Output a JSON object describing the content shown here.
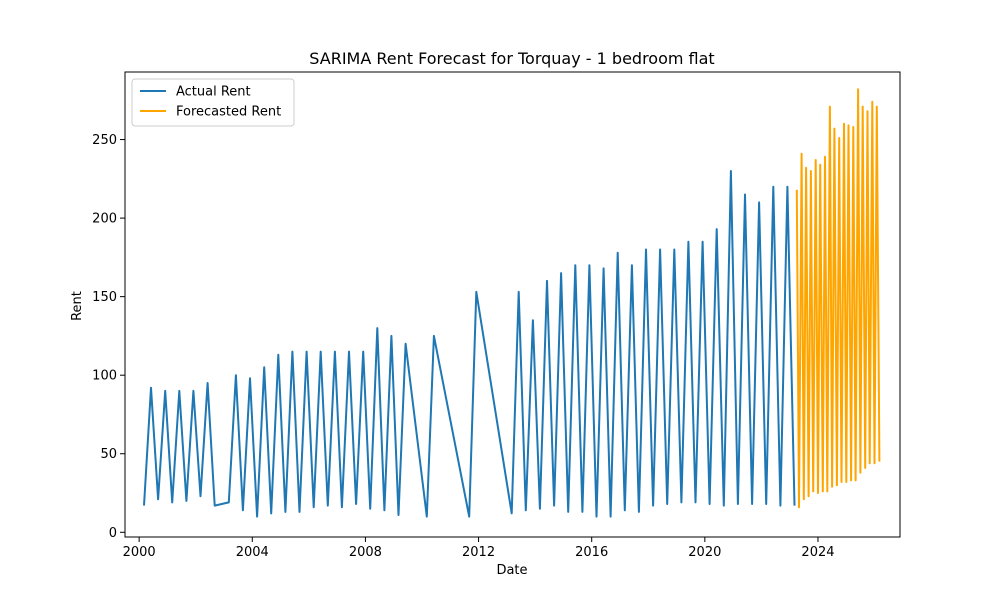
{
  "chart_data": {
    "type": "line",
    "title": "SARIMA Rent Forecast for Torquay - 1 bedroom flat",
    "xlabel": "Date",
    "ylabel": "Rent",
    "xlim": [
      1999.5,
      2026.9
    ],
    "ylim": [
      -3,
      293
    ],
    "x_ticks": [
      2000,
      2004,
      2008,
      2012,
      2016,
      2020,
      2024
    ],
    "x_tick_labels": [
      "2000",
      "2004",
      "2008",
      "2012",
      "2016",
      "2020",
      "2024"
    ],
    "y_ticks": [
      0,
      50,
      100,
      150,
      200,
      250
    ],
    "y_tick_labels": [
      "0",
      "50",
      "100",
      "150",
      "200",
      "250"
    ],
    "grid": false,
    "legend_position": "upper-left",
    "series": [
      {
        "name": "Actual Rent",
        "color": "#1f77b4",
        "points": [
          [
            2000.17,
            17
          ],
          [
            2000.42,
            92
          ],
          [
            2000.67,
            21
          ],
          [
            2000.92,
            90
          ],
          [
            2001.17,
            19
          ],
          [
            2001.42,
            90
          ],
          [
            2001.67,
            20
          ],
          [
            2001.92,
            90
          ],
          [
            2002.17,
            23
          ],
          [
            2002.42,
            95
          ],
          [
            2002.67,
            17
          ],
          [
            2003.17,
            19
          ],
          [
            2003.42,
            100
          ],
          [
            2003.67,
            14
          ],
          [
            2003.92,
            98
          ],
          [
            2004.17,
            10
          ],
          [
            2004.42,
            105
          ],
          [
            2004.67,
            12
          ],
          [
            2004.92,
            113
          ],
          [
            2005.17,
            13
          ],
          [
            2005.42,
            115
          ],
          [
            2005.67,
            13
          ],
          [
            2005.92,
            115
          ],
          [
            2006.17,
            16
          ],
          [
            2006.42,
            115
          ],
          [
            2006.67,
            17
          ],
          [
            2006.92,
            115
          ],
          [
            2007.17,
            16
          ],
          [
            2007.42,
            115
          ],
          [
            2007.67,
            18
          ],
          [
            2007.92,
            115
          ],
          [
            2008.17,
            15
          ],
          [
            2008.42,
            130
          ],
          [
            2008.67,
            14
          ],
          [
            2008.92,
            125
          ],
          [
            2009.17,
            11
          ],
          [
            2009.42,
            120
          ],
          [
            2010.17,
            10
          ],
          [
            2010.42,
            125
          ],
          [
            2011.67,
            10
          ],
          [
            2011.92,
            153
          ],
          [
            2013.17,
            12
          ],
          [
            2013.42,
            153
          ],
          [
            2013.67,
            14
          ],
          [
            2013.92,
            135
          ],
          [
            2014.17,
            15
          ],
          [
            2014.42,
            160
          ],
          [
            2014.67,
            17
          ],
          [
            2014.92,
            165
          ],
          [
            2015.17,
            13
          ],
          [
            2015.42,
            170
          ],
          [
            2015.67,
            13
          ],
          [
            2015.92,
            170
          ],
          [
            2016.17,
            10
          ],
          [
            2016.42,
            168
          ],
          [
            2016.67,
            10
          ],
          [
            2016.92,
            178
          ],
          [
            2017.17,
            14
          ],
          [
            2017.42,
            170
          ],
          [
            2017.67,
            13
          ],
          [
            2017.92,
            180
          ],
          [
            2018.17,
            17
          ],
          [
            2018.42,
            180
          ],
          [
            2018.67,
            18
          ],
          [
            2018.92,
            180
          ],
          [
            2019.17,
            19
          ],
          [
            2019.42,
            185
          ],
          [
            2019.67,
            19
          ],
          [
            2019.92,
            185
          ],
          [
            2020.17,
            18
          ],
          [
            2020.42,
            193
          ],
          [
            2020.67,
            17
          ],
          [
            2020.92,
            230
          ],
          [
            2021.17,
            18
          ],
          [
            2021.42,
            215
          ],
          [
            2021.67,
            18
          ],
          [
            2021.92,
            210
          ],
          [
            2022.17,
            18
          ],
          [
            2022.42,
            220
          ],
          [
            2022.67,
            17
          ],
          [
            2022.92,
            220
          ],
          [
            2023.17,
            17
          ]
        ]
      },
      {
        "name": "Forecasted Rent",
        "color": "#ffa500",
        "points": [
          [
            2023.25,
            218
          ],
          [
            2023.33,
            16
          ],
          [
            2023.42,
            241
          ],
          [
            2023.5,
            21
          ],
          [
            2023.58,
            232
          ],
          [
            2023.67,
            23
          ],
          [
            2023.75,
            230
          ],
          [
            2023.83,
            26
          ],
          [
            2023.92,
            237
          ],
          [
            2024.0,
            25
          ],
          [
            2024.08,
            234
          ],
          [
            2024.17,
            26
          ],
          [
            2024.25,
            239
          ],
          [
            2024.33,
            26
          ],
          [
            2024.42,
            271
          ],
          [
            2024.5,
            29
          ],
          [
            2024.58,
            257
          ],
          [
            2024.67,
            30
          ],
          [
            2024.75,
            251
          ],
          [
            2024.83,
            32
          ],
          [
            2024.92,
            260
          ],
          [
            2025.0,
            32
          ],
          [
            2025.08,
            259
          ],
          [
            2025.17,
            33
          ],
          [
            2025.25,
            258
          ],
          [
            2025.33,
            33
          ],
          [
            2025.42,
            282
          ],
          [
            2025.5,
            38
          ],
          [
            2025.58,
            271
          ],
          [
            2025.67,
            41
          ],
          [
            2025.75,
            268
          ],
          [
            2025.83,
            44
          ],
          [
            2025.92,
            274
          ],
          [
            2026.0,
            44
          ],
          [
            2026.08,
            271
          ],
          [
            2026.17,
            45
          ]
        ]
      }
    ]
  }
}
